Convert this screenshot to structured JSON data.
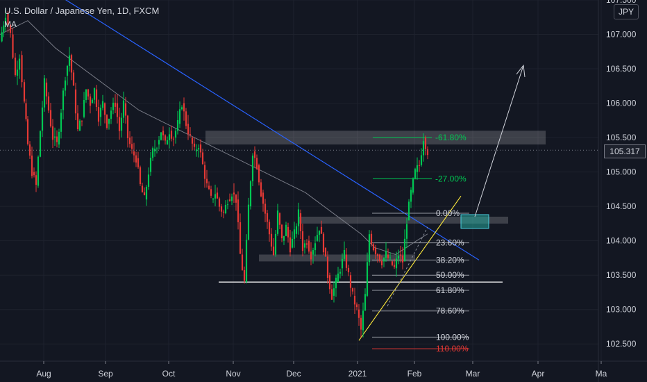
{
  "header": {
    "title": "U.S. Dollar / Japanese Yen, 1D, FXCM",
    "indicator": "MA"
  },
  "currency_button": "JPY",
  "last_price": "105.317",
  "colors": {
    "background": "#131722",
    "up": "#26a69a",
    "down": "#ef5350",
    "green": "#00c853",
    "red": "#e53935",
    "trendline": "#2962ff",
    "support": "#ffeb3b",
    "fib": "#9598a1",
    "zone": "#ffffff",
    "ma": "#787b86"
  },
  "chart_data": {
    "type": "candlestick",
    "symbol": "USDJPY",
    "timeframe": "1D",
    "ylim": [
      102.25,
      107.5
    ],
    "y_ticks": [
      "107.500",
      "107.000",
      "106.500",
      "106.000",
      "105.500",
      "105.000",
      "104.500",
      "104.000",
      "103.500",
      "103.000",
      "102.500"
    ],
    "x_ticks": [
      "Aug",
      "Sep",
      "Oct",
      "Nov",
      "Dec",
      "2021",
      "Feb",
      "Mar",
      "Apr",
      "Ma"
    ],
    "price_path": [
      [
        0,
        106.9
      ],
      [
        8,
        107.3
      ],
      [
        15,
        107.0
      ],
      [
        22,
        106.4
      ],
      [
        28,
        106.7
      ],
      [
        35,
        106.0
      ],
      [
        40,
        105.4
      ],
      [
        46,
        105.0
      ],
      [
        52,
        104.8
      ],
      [
        58,
        105.6
      ],
      [
        64,
        106.3
      ],
      [
        70,
        105.9
      ],
      [
        76,
        105.5
      ],
      [
        82,
        105.4
      ],
      [
        88,
        105.9
      ],
      [
        94,
        106.4
      ],
      [
        100,
        106.7
      ],
      [
        106,
        106.2
      ],
      [
        112,
        105.6
      ],
      [
        118,
        105.8
      ],
      [
        124,
        106.2
      ],
      [
        130,
        106.0
      ],
      [
        136,
        106.2
      ],
      [
        142,
        105.8
      ],
      [
        148,
        106.0
      ],
      [
        154,
        105.7
      ],
      [
        160,
        105.9
      ],
      [
        166,
        106.0
      ],
      [
        172,
        105.6
      ],
      [
        178,
        106.0
      ],
      [
        184,
        105.5
      ],
      [
        190,
        105.3
      ],
      [
        196,
        105.2
      ],
      [
        202,
        104.8
      ],
      [
        208,
        104.6
      ],
      [
        214,
        105.0
      ],
      [
        220,
        105.3
      ],
      [
        226,
        105.4
      ],
      [
        232,
        105.6
      ],
      [
        238,
        105.4
      ],
      [
        244,
        105.6
      ],
      [
        250,
        105.5
      ],
      [
        256,
        105.7
      ],
      [
        262,
        106.0
      ],
      [
        268,
        105.7
      ],
      [
        274,
        105.5
      ],
      [
        280,
        105.3
      ],
      [
        286,
        105.4
      ],
      [
        292,
        105.1
      ],
      [
        298,
        104.8
      ],
      [
        304,
        104.6
      ],
      [
        310,
        104.7
      ],
      [
        316,
        104.5
      ],
      [
        322,
        104.4
      ],
      [
        328,
        104.6
      ],
      [
        334,
        104.7
      ],
      [
        340,
        104.6
      ],
      [
        346,
        103.8
      ],
      [
        352,
        103.4
      ],
      [
        358,
        104.5
      ],
      [
        364,
        105.3
      ],
      [
        370,
        105.1
      ],
      [
        376,
        104.7
      ],
      [
        382,
        104.4
      ],
      [
        388,
        104.1
      ],
      [
        394,
        103.8
      ],
      [
        400,
        104.4
      ],
      [
        406,
        104.0
      ],
      [
        412,
        104.2
      ],
      [
        418,
        103.9
      ],
      [
        424,
        104.1
      ],
      [
        430,
        104.4
      ],
      [
        436,
        103.9
      ],
      [
        442,
        104.0
      ],
      [
        448,
        103.8
      ],
      [
        454,
        104.0
      ],
      [
        460,
        104.2
      ],
      [
        466,
        103.9
      ],
      [
        472,
        103.5
      ],
      [
        478,
        103.2
      ],
      [
        484,
        103.4
      ],
      [
        490,
        103.6
      ],
      [
        496,
        103.8
      ],
      [
        502,
        103.5
      ],
      [
        508,
        103.2
      ],
      [
        514,
        103.0
      ],
      [
        520,
        102.7
      ],
      [
        526,
        103.2
      ],
      [
        532,
        104.1
      ],
      [
        538,
        103.9
      ],
      [
        544,
        103.8
      ],
      [
        550,
        103.7
      ],
      [
        556,
        103.8
      ],
      [
        562,
        103.7
      ],
      [
        568,
        103.6
      ],
      [
        574,
        103.8
      ],
      [
        580,
        103.7
      ],
      [
        586,
        104.3
      ],
      [
        592,
        104.7
      ],
      [
        598,
        105.0
      ],
      [
        604,
        105.1
      ],
      [
        610,
        105.5
      ],
      [
        616,
        105.3
      ]
    ],
    "ma_path": [
      [
        0,
        107.0
      ],
      [
        40,
        107.2
      ],
      [
        80,
        106.8
      ],
      [
        120,
        106.5
      ],
      [
        160,
        106.2
      ],
      [
        200,
        105.9
      ],
      [
        240,
        105.7
      ],
      [
        280,
        105.5
      ],
      [
        320,
        105.3
      ],
      [
        360,
        105.1
      ],
      [
        400,
        104.9
      ],
      [
        440,
        104.7
      ],
      [
        480,
        104.4
      ],
      [
        520,
        104.1
      ],
      [
        540,
        103.9
      ],
      [
        570,
        103.8
      ],
      [
        600,
        104.0
      ],
      [
        616,
        104.1
      ]
    ],
    "annotations": {
      "zones": [
        {
          "y0": 105.4,
          "y1": 105.6,
          "x0": 296,
          "x1": 786
        },
        {
          "y0": 104.25,
          "y1": 104.35,
          "x0": 430,
          "x1": 732
        },
        {
          "y0": 103.7,
          "y1": 103.8,
          "x0": 373,
          "x1": 598
        }
      ],
      "support_line_level": 103.4,
      "fib_levels": [
        {
          "label": "0.00%",
          "value": 104.4
        },
        {
          "label": "23.60%",
          "value": 103.97
        },
        {
          "label": "38.20%",
          "value": 103.72
        },
        {
          "label": "50.00%",
          "value": 103.5
        },
        {
          "label": "61.80%",
          "value": 103.28
        },
        {
          "label": "78.60%",
          "value": 102.98
        },
        {
          "label": "100.00%",
          "value": 102.6
        },
        {
          "label": "110.00%",
          "value": 102.43
        }
      ],
      "fib_extensions": [
        {
          "label": "-61.80%",
          "value": 105.5
        },
        {
          "label": "-27.00%",
          "value": 104.9
        }
      ]
    }
  }
}
